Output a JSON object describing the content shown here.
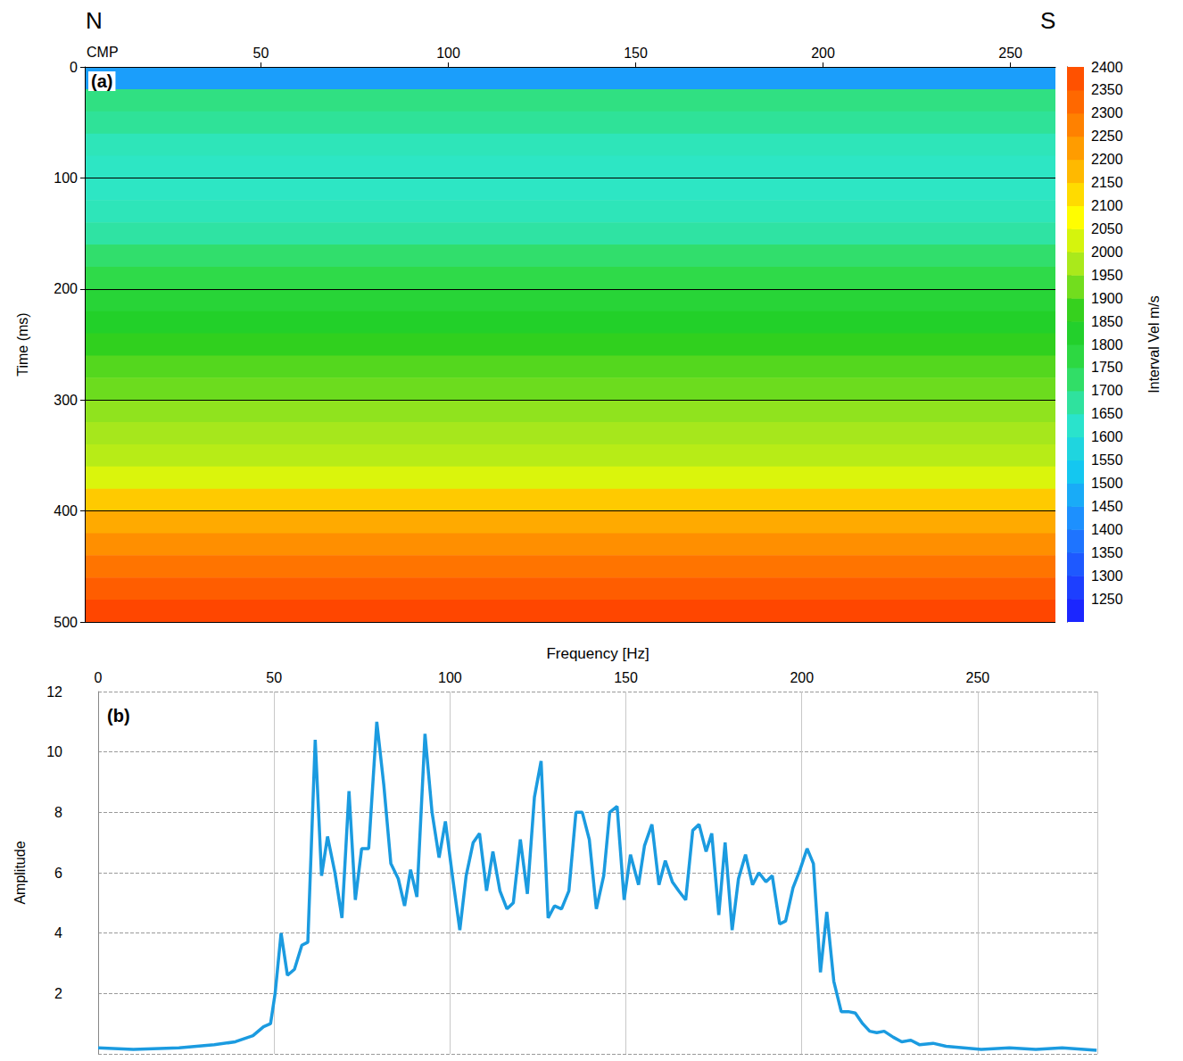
{
  "chart_data": [
    {
      "type": "heatmap",
      "panel_label": "(a)",
      "annotations": [
        "N",
        "S"
      ],
      "xlabel": "CMP",
      "ylabel": "Time (ms)",
      "xlim": [
        3,
        262
      ],
      "xticks": [
        50,
        100,
        150,
        200,
        250
      ],
      "ylim": [
        0,
        500
      ],
      "yticks": [
        0,
        100,
        200,
        300,
        400,
        500
      ],
      "grid": true,
      "cells": {
        "time_edges": [
          0,
          20,
          40,
          60,
          80,
          100,
          120,
          140,
          160,
          180,
          200,
          220,
          240,
          260,
          280,
          300,
          320,
          340,
          360,
          380,
          400,
          420,
          440,
          460,
          480,
          500
        ],
        "velocity": [
          1450,
          1700,
          1680,
          1650,
          1640,
          1640,
          1650,
          1670,
          1720,
          1760,
          1800,
          1830,
          1870,
          1900,
          1920,
          1950,
          1970,
          1990,
          2030,
          2150,
          2200,
          2250,
          2300,
          2350,
          2400
        ]
      },
      "colorbar": {
        "title": "Interval Vel m/s",
        "range": [
          1200,
          2400
        ],
        "ticks": [
          1250,
          1300,
          1350,
          1400,
          1450,
          1500,
          1550,
          1600,
          1650,
          1700,
          1750,
          1800,
          1850,
          1900,
          1950,
          2000,
          2050,
          2100,
          2150,
          2200,
          2250,
          2300,
          2350,
          2400
        ]
      }
    },
    {
      "type": "line",
      "panel_label": "(b)",
      "xlabel": "Frequency [Hz]",
      "ylabel": "Amplitude",
      "color": "#1b9be0",
      "xlim": [
        0,
        284
      ],
      "xticks": [
        0,
        50,
        100,
        150,
        200,
        250
      ],
      "ylim": [
        0,
        12
      ],
      "yticks": [
        2,
        4,
        6,
        8,
        10,
        12
      ],
      "grid": true,
      "x": [
        0,
        10,
        23,
        33,
        39,
        44,
        47,
        49,
        50.3,
        52,
        53.8,
        55.8,
        57.9,
        59.6,
        61.7,
        63.5,
        65.2,
        67.3,
        69.3,
        71.3,
        73.1,
        74.9,
        76.9,
        79.2,
        81.2,
        83.2,
        85.3,
        87.1,
        88.8,
        90.6,
        92.9,
        94.9,
        96.9,
        98.7,
        100.8,
        102.8,
        104.6,
        106.6,
        108.4,
        110.4,
        112.2,
        114.2,
        116.2,
        118,
        120,
        122,
        124,
        125.9,
        127.9,
        129.7,
        131.7,
        133.8,
        135.8,
        137.6,
        139.6,
        141.6,
        143.7,
        145.4,
        147.5,
        149.5,
        151.3,
        153.6,
        155.3,
        157.4,
        159.4,
        161.2,
        163.2,
        165,
        167,
        169,
        170.8,
        172.8,
        174.4,
        176.4,
        178.2,
        180.2,
        182,
        184,
        186,
        187.8,
        189.8,
        191.6,
        193.7,
        195.4,
        197.5,
        199.5,
        201.5,
        203.3,
        205.3,
        207.1,
        209.1,
        211.2,
        213.2,
        215.2,
        217.3,
        219.3,
        221.3,
        223.4,
        226,
        228.4,
        231,
        233.5,
        237.3,
        241,
        246,
        251,
        259,
        266.5,
        274,
        283.8
      ],
      "values": [
        0.2,
        0.15,
        0.2,
        0.3,
        0.4,
        0.6,
        0.9,
        1.0,
        2.0,
        4.0,
        2.6,
        2.8,
        3.6,
        3.7,
        10.4,
        5.9,
        7.2,
        6.0,
        4.5,
        8.7,
        5.1,
        6.8,
        6.8,
        11.0,
        8.9,
        6.3,
        5.8,
        4.9,
        6.1,
        5.2,
        10.6,
        8.0,
        6.5,
        7.7,
        5.8,
        4.1,
        5.9,
        7.0,
        7.3,
        5.4,
        6.7,
        5.4,
        4.8,
        5.0,
        7.1,
        5.3,
        8.5,
        9.7,
        4.5,
        4.9,
        4.8,
        5.4,
        8.0,
        8.0,
        7.1,
        4.8,
        5.9,
        8.0,
        8.2,
        5.1,
        6.6,
        5.6,
        6.9,
        7.6,
        5.6,
        6.4,
        5.7,
        5.4,
        5.1,
        7.4,
        7.6,
        6.7,
        7.3,
        4.6,
        7.0,
        4.1,
        5.8,
        6.6,
        5.6,
        6.0,
        5.7,
        5.9,
        4.3,
        4.4,
        5.5,
        6.1,
        6.8,
        6.3,
        2.7,
        4.7,
        2.4,
        1.4,
        1.4,
        1.35,
        1.0,
        0.75,
        0.7,
        0.75,
        0.55,
        0.4,
        0.45,
        0.3,
        0.35,
        0.25,
        0.2,
        0.15,
        0.2,
        0.15,
        0.2,
        0.12
      ]
    }
  ]
}
